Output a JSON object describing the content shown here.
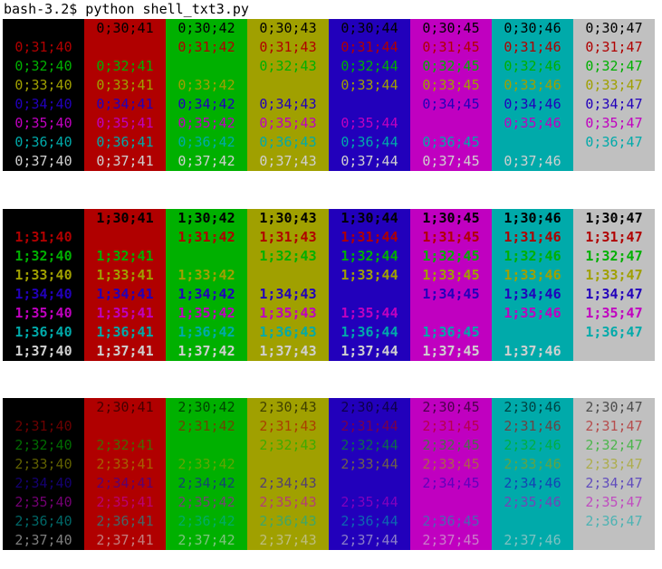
{
  "terminal": {
    "prompt": "bash-3.2$ python shell_txt3.py"
  },
  "colors": {
    "bg": {
      "40": "#000000",
      "41": "#b00000",
      "42": "#00b000",
      "43": "#a0a000",
      "44": "#2200bb",
      "45": "#c000c0",
      "46": "#00aaaa",
      "47": "#c0c0c0"
    },
    "fg": {
      "30": "#000000",
      "31": "#b00000",
      "32": "#00b000",
      "33": "#a0a000",
      "34": "#2200bb",
      "35": "#c000c0",
      "36": "#00aaaa",
      "37": "#d0d0d0"
    }
  },
  "blocks": [
    {
      "style": "0",
      "rows": [
        [
          "",
          "0;30;41",
          "0;30;42",
          "0;30;43",
          "0;30;44",
          "0;30;45",
          "0;30;46",
          "0;30;47"
        ],
        [
          "0;31;40",
          "",
          "0;31;42",
          "0;31;43",
          "0;31;44",
          "0;31;45",
          "0;31;46",
          "0;31;47"
        ],
        [
          "0;32;40",
          "0;32;41",
          "",
          "0;32;43",
          "0;32;44",
          "0;32;45",
          "0;32;46",
          "0;32;47"
        ],
        [
          "0;33;40",
          "0;33;41",
          "0;33;42",
          "",
          "0;33;44",
          "0;33;45",
          "0;33;46",
          "0;33;47"
        ],
        [
          "0;34;40",
          "0;34;41",
          "0;34;42",
          "0;34;43",
          "",
          "0;34;45",
          "0;34;46",
          "0;34;47"
        ],
        [
          "0;35;40",
          "0;35;41",
          "0;35;42",
          "0;35;43",
          "0;35;44",
          "",
          "0;35;46",
          "0;35;47"
        ],
        [
          "0;36;40",
          "0;36;41",
          "0;36;42",
          "0;36;43",
          "0;36;44",
          "0;36;45",
          "",
          "0;36;47"
        ],
        [
          "0;37;40",
          "0;37;41",
          "0;37;42",
          "0;37;43",
          "0;37;44",
          "0;37;45",
          "0;37;46",
          ""
        ]
      ]
    },
    {
      "style": "1",
      "rows": [
        [
          "",
          "1;30;41",
          "1;30;42",
          "1;30;43",
          "1;30;44",
          "1;30;45",
          "1;30;46",
          "1;30;47"
        ],
        [
          "1;31;40",
          "",
          "1;31;42",
          "1;31;43",
          "1;31;44",
          "1;31;45",
          "1;31;46",
          "1;31;47"
        ],
        [
          "1;32;40",
          "1;32;41",
          "",
          "1;32;43",
          "1;32;44",
          "1;32;45",
          "1;32;46",
          "1;32;47"
        ],
        [
          "1;33;40",
          "1;33;41",
          "1;33;42",
          "",
          "1;33;44",
          "1;33;45",
          "1;33;46",
          "1;33;47"
        ],
        [
          "1;34;40",
          "1;34;41",
          "1;34;42",
          "1;34;43",
          "",
          "1;34;45",
          "1;34;46",
          "1;34;47"
        ],
        [
          "1;35;40",
          "1;35;41",
          "1;35;42",
          "1;35;43",
          "1;35;44",
          "",
          "1;35;46",
          "1;35;47"
        ],
        [
          "1;36;40",
          "1;36;41",
          "1;36;42",
          "1;36;43",
          "1;36;44",
          "1;36;45",
          "",
          "1;36;47"
        ],
        [
          "1;37;40",
          "1;37;41",
          "1;37;42",
          "1;37;43",
          "1;37;44",
          "1;37;45",
          "1;37;46",
          ""
        ]
      ]
    },
    {
      "style": "2",
      "rows": [
        [
          "",
          "2;30;41",
          "2;30;42",
          "2;30;43",
          "2;30;44",
          "2;30;45",
          "2;30;46",
          "2;30;47"
        ],
        [
          "2;31;40",
          "",
          "2;31;42",
          "2;31;43",
          "2;31;44",
          "2;31;45",
          "2;31;46",
          "2;31;47"
        ],
        [
          "2;32;40",
          "2;32;41",
          "",
          "2;32;43",
          "2;32;44",
          "2;32;45",
          "2;32;46",
          "2;32;47"
        ],
        [
          "2;33;40",
          "2;33;41",
          "2;33;42",
          "",
          "2;33;44",
          "2;33;45",
          "2;33;46",
          "2;33;47"
        ],
        [
          "2;34;40",
          "2;34;41",
          "2;34;42",
          "2;34;43",
          "",
          "2;34;45",
          "2;34;46",
          "2;34;47"
        ],
        [
          "2;35;40",
          "2;35;41",
          "2;35;42",
          "2;35;43",
          "2;35;44",
          "",
          "2;35;46",
          "2;35;47"
        ],
        [
          "2;36;40",
          "2;36;41",
          "2;36;42",
          "2;36;43",
          "2;36;44",
          "2;36;45",
          "",
          "2;36;47"
        ],
        [
          "2;37;40",
          "2;37;41",
          "2;37;42",
          "2;37;43",
          "2;37;44",
          "2;37;45",
          "2;37;46",
          ""
        ]
      ]
    }
  ]
}
